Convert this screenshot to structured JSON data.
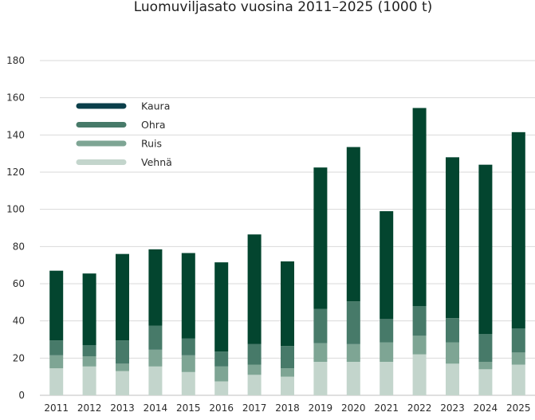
{
  "chart_data": {
    "type": "bar",
    "stacked": true,
    "title": "Luomuviljasato vuosina 2011–2025 (1000 t)",
    "xlabel": "",
    "ylabel": "",
    "ylim": [
      0,
      180
    ],
    "yticks": [
      0,
      20,
      40,
      60,
      80,
      100,
      120,
      140,
      160,
      180
    ],
    "grid": true,
    "legend_position": "top-left",
    "categories": [
      "2011",
      "2012",
      "2013",
      "2014",
      "2015",
      "2016",
      "2017",
      "2018",
      "2019",
      "2020",
      "2021",
      "2022",
      "2023",
      "2024",
      "2025"
    ],
    "series": [
      {
        "name": "Vehnä",
        "color": "#c3d5cc",
        "values": [
          14.5,
          15.5,
          13,
          15.5,
          12.5,
          7.5,
          11,
          10,
          18,
          18,
          18,
          22,
          17,
          14,
          16.5
        ]
      },
      {
        "name": "Ruis",
        "color": "#7ea594",
        "values": [
          7,
          5.5,
          4,
          9,
          9,
          8,
          5.5,
          4.5,
          10,
          9.5,
          10.5,
          10,
          11.5,
          4,
          6.5
        ]
      },
      {
        "name": "Ohra",
        "color": "#477a69",
        "values": [
          8,
          6,
          12.5,
          13,
          9,
          8,
          11,
          12,
          18.5,
          23,
          12.5,
          16,
          13,
          15,
          13
        ]
      },
      {
        "name": "Kaura",
        "color": "#03452f",
        "values": [
          37.5,
          38.5,
          46.5,
          41,
          46,
          48,
          59,
          45.5,
          76,
          83,
          58,
          106.5,
          86.5,
          91,
          105.5
        ]
      }
    ],
    "legend_order": [
      "Kaura",
      "Ohra",
      "Ruis",
      "Vehnä"
    ],
    "legend_colors": [
      "#0a3f4a",
      "#477a69",
      "#7ea594",
      "#c3d5cc"
    ]
  }
}
